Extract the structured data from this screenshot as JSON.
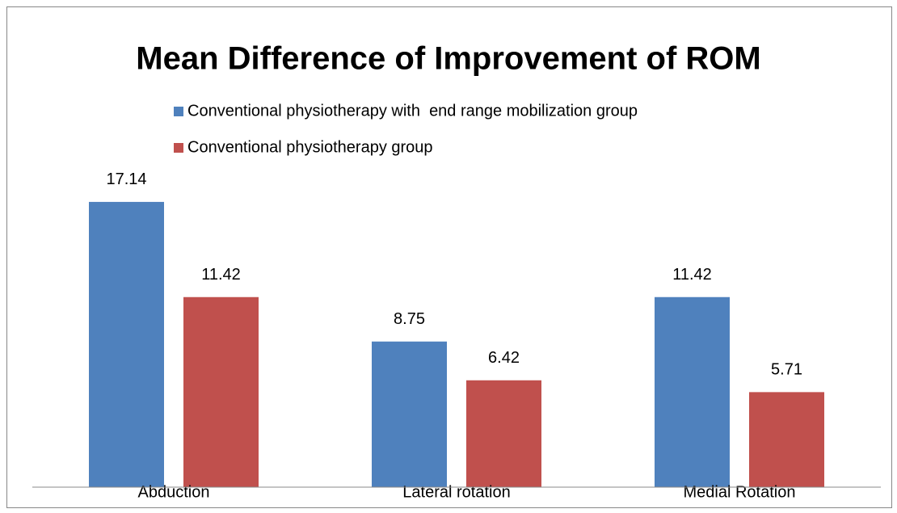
{
  "chart_data": {
    "type": "bar",
    "title": "Mean Difference of Improvement of ROM",
    "categories": [
      "Abduction",
      "Lateral rotation",
      "Medial Rotation"
    ],
    "series": [
      {
        "name": "Conventional physiotherapy with  end range mobilization group",
        "color": "#4f81bd",
        "values": [
          17.14,
          8.75,
          11.42
        ]
      },
      {
        "name": "Conventional physiotherapy group",
        "color": "#c0504d",
        "values": [
          11.42,
          6.42,
          5.71
        ]
      }
    ],
    "ylim": [
      0,
      20
    ],
    "legend": "top"
  }
}
